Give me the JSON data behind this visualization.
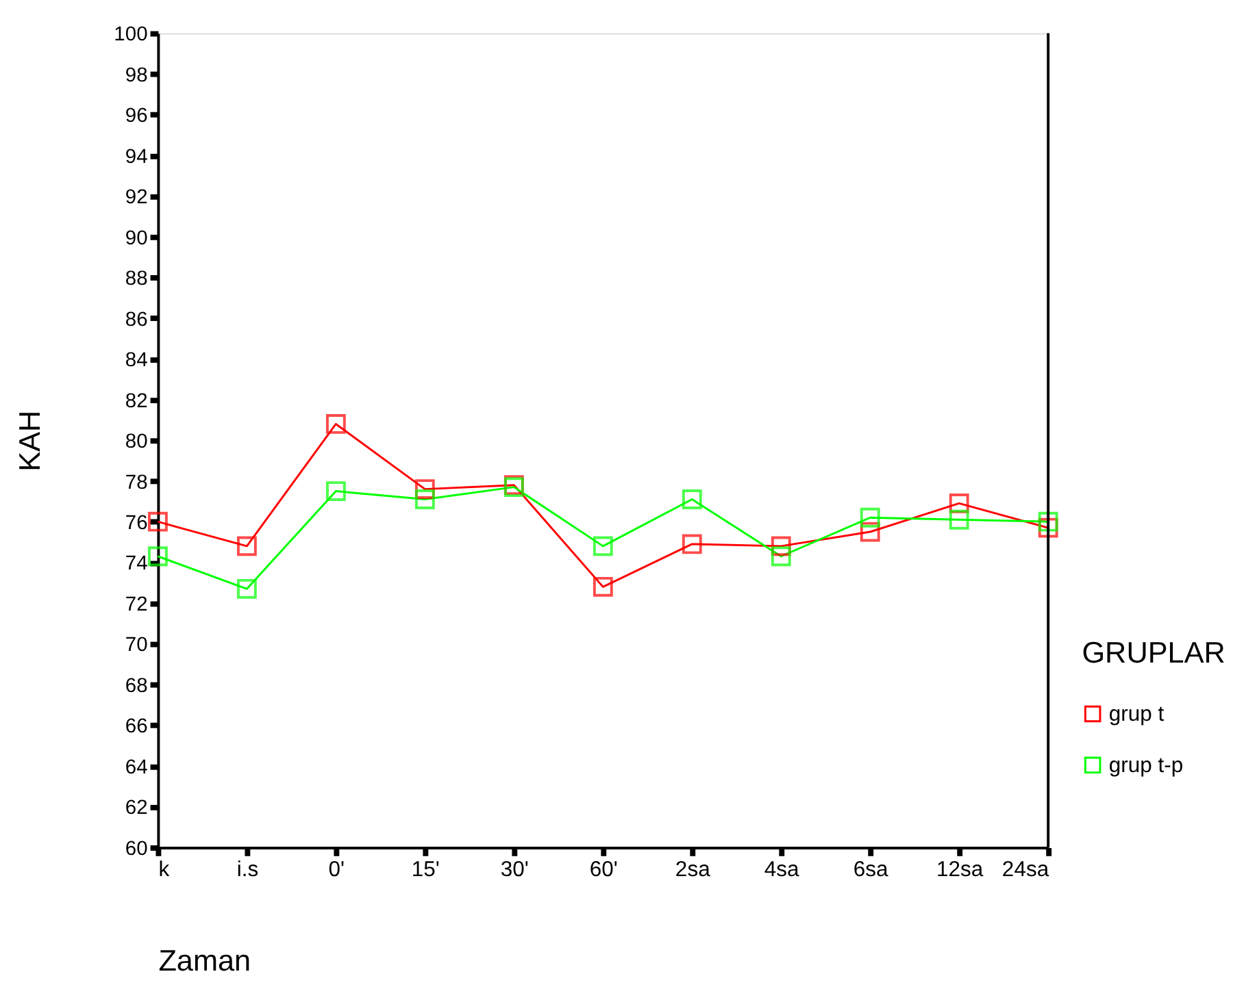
{
  "chart_data": {
    "type": "line",
    "xlabel": "Zaman",
    "ylabel": "KAH",
    "legend_title": "GRUPLAR",
    "categories": [
      "k",
      "i.s",
      "0'",
      "15'",
      "30'",
      "60'",
      "2sa",
      "4sa",
      "6sa",
      "12sa",
      "24sa"
    ],
    "series": [
      {
        "name": "grup t",
        "color": "#ff0000",
        "values": [
          76.0,
          74.8,
          80.8,
          77.6,
          77.8,
          72.8,
          74.9,
          74.8,
          75.5,
          76.9,
          75.7
        ]
      },
      {
        "name": "grup t-p",
        "color": "#00ff00",
        "values": [
          74.3,
          72.7,
          77.5,
          77.1,
          77.7,
          74.8,
          77.1,
          74.3,
          76.2,
          76.1,
          76.0
        ]
      }
    ],
    "ylim": [
      60,
      100
    ],
    "yticks": [
      60,
      62,
      64,
      66,
      68,
      70,
      72,
      74,
      76,
      78,
      80,
      82,
      84,
      86,
      88,
      90,
      92,
      94,
      96,
      98,
      100
    ],
    "grid": false,
    "legend": "right",
    "marker": "square",
    "line_style": "solid"
  }
}
